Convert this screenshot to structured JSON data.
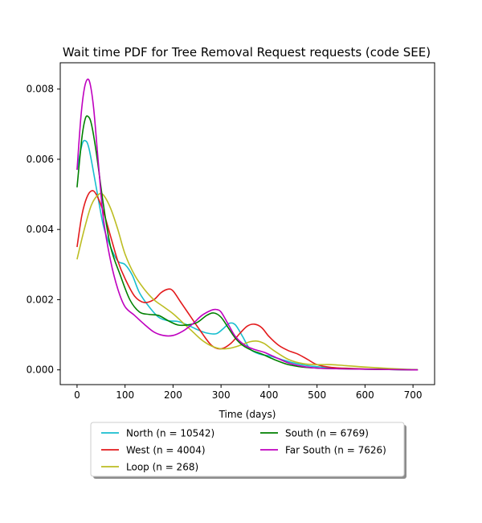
{
  "chart_data": {
    "type": "line",
    "title": "Wait time PDF for Tree Removal Request  requests (code SEE)",
    "xlabel": "Time (days)",
    "ylabel": "",
    "xlim": [
      -35,
      745
    ],
    "ylim": [
      -0.00042,
      0.00875
    ],
    "xticks": [
      0,
      100,
      200,
      300,
      400,
      500,
      600,
      700
    ],
    "xtick_labels": [
      "0",
      "100",
      "200",
      "300",
      "400",
      "500",
      "600",
      "700"
    ],
    "yticks": [
      0.0,
      0.002,
      0.004,
      0.006,
      0.008
    ],
    "ytick_labels": [
      "0.000",
      "0.002",
      "0.004",
      "0.006",
      "0.008"
    ],
    "grid": false,
    "legend": {
      "placement": "below",
      "columns": 2,
      "shadow": true
    },
    "series": [
      {
        "name": "North (n = 10542)",
        "color": "#17becf",
        "x": [
          0,
          10,
          17,
          25,
          40,
          55,
          70,
          85,
          100,
          115,
          130,
          150,
          170,
          190,
          210,
          230,
          250,
          270,
          290,
          305,
          318,
          330,
          345,
          360,
          380,
          400,
          425,
          450,
          480,
          510,
          550,
          600,
          650,
          710
        ],
        "y": [
          0.0057,
          0.0064,
          0.00653,
          0.0063,
          0.0052,
          0.0041,
          0.0035,
          0.0031,
          0.003,
          0.0027,
          0.0022,
          0.0018,
          0.0015,
          0.0014,
          0.00138,
          0.00128,
          0.00115,
          0.00105,
          0.00103,
          0.00118,
          0.00133,
          0.00128,
          0.00095,
          0.0006,
          0.00045,
          0.0004,
          0.0003,
          0.0002,
          0.00012,
          8e-05,
          4e-05,
          2e-05,
          1e-05,
          0.0
        ]
      },
      {
        "name": "West (n = 4004)",
        "color": "#e31a1c",
        "x": [
          0,
          10,
          20,
          30,
          40,
          55,
          70,
          85,
          100,
          120,
          140,
          160,
          175,
          190,
          200,
          215,
          235,
          255,
          280,
          300,
          320,
          340,
          355,
          370,
          385,
          400,
          420,
          440,
          460,
          480,
          500,
          530,
          570,
          620,
          680,
          710
        ],
        "y": [
          0.0035,
          0.0044,
          0.0049,
          0.0051,
          0.005,
          0.0045,
          0.0038,
          0.0031,
          0.0026,
          0.0021,
          0.00192,
          0.002,
          0.0022,
          0.0023,
          0.00225,
          0.00195,
          0.00155,
          0.00115,
          0.0007,
          0.0006,
          0.00075,
          0.00105,
          0.00125,
          0.0013,
          0.0012,
          0.00095,
          0.0007,
          0.00055,
          0.00045,
          0.0003,
          0.00015,
          7e-05,
          4e-05,
          2e-05,
          1e-05,
          0.0
        ]
      },
      {
        "name": "Loop (n = 268)",
        "color": "#bcbd22",
        "x": [
          0,
          15,
          30,
          45,
          55,
          70,
          85,
          100,
          120,
          140,
          160,
          180,
          200,
          220,
          240,
          260,
          280,
          300,
          320,
          340,
          360,
          375,
          390,
          410,
          440,
          470,
          500,
          530,
          560,
          600,
          650,
          710
        ],
        "y": [
          0.00315,
          0.004,
          0.0047,
          0.005,
          0.00498,
          0.0046,
          0.004,
          0.0033,
          0.0027,
          0.0023,
          0.002,
          0.0018,
          0.0016,
          0.00135,
          0.0011,
          0.00085,
          0.00068,
          0.0006,
          0.00062,
          0.0007,
          0.0008,
          0.00082,
          0.00075,
          0.00055,
          0.0003,
          0.00018,
          0.00015,
          0.00015,
          0.00012,
          8e-05,
          4e-05,
          0.0
        ]
      },
      {
        "name": "South (n = 6769)",
        "color": "#008000",
        "x": [
          0,
          10,
          17,
          23,
          30,
          40,
          55,
          70,
          90,
          110,
          130,
          150,
          170,
          190,
          210,
          230,
          250,
          270,
          285,
          300,
          315,
          330,
          345,
          365,
          385,
          410,
          440,
          470,
          500,
          550,
          600,
          650,
          710
        ],
        "y": [
          0.0052,
          0.0066,
          0.00715,
          0.00722,
          0.007,
          0.0062,
          0.0047,
          0.0035,
          0.0027,
          0.002,
          0.00165,
          0.00158,
          0.00155,
          0.0014,
          0.00128,
          0.00128,
          0.00135,
          0.00155,
          0.00162,
          0.0015,
          0.0012,
          0.0009,
          0.0007,
          0.00055,
          0.00045,
          0.0003,
          0.00015,
          8e-05,
          5e-05,
          3e-05,
          2e-05,
          1e-05,
          0.0
        ]
      },
      {
        "name": "Far South (n = 7626)",
        "color": "#bf00bf",
        "x": [
          0,
          8,
          15,
          22,
          28,
          35,
          45,
          55,
          70,
          85,
          100,
          120,
          140,
          160,
          180,
          200,
          220,
          240,
          260,
          280,
          290,
          300,
          315,
          330,
          350,
          370,
          390,
          410,
          440,
          470,
          500,
          550,
          600,
          650,
          710
        ],
        "y": [
          0.0057,
          0.0072,
          0.008,
          0.00828,
          0.0081,
          0.0074,
          0.0058,
          0.0043,
          0.0031,
          0.0023,
          0.0018,
          0.00155,
          0.0013,
          0.00108,
          0.00098,
          0.00098,
          0.0011,
          0.0013,
          0.00155,
          0.0017,
          0.00172,
          0.00165,
          0.0013,
          0.00095,
          0.0007,
          0.00058,
          0.0005,
          0.00038,
          0.0002,
          0.0001,
          5e-05,
          3e-05,
          2e-05,
          1e-05,
          0.0
        ]
      }
    ]
  }
}
